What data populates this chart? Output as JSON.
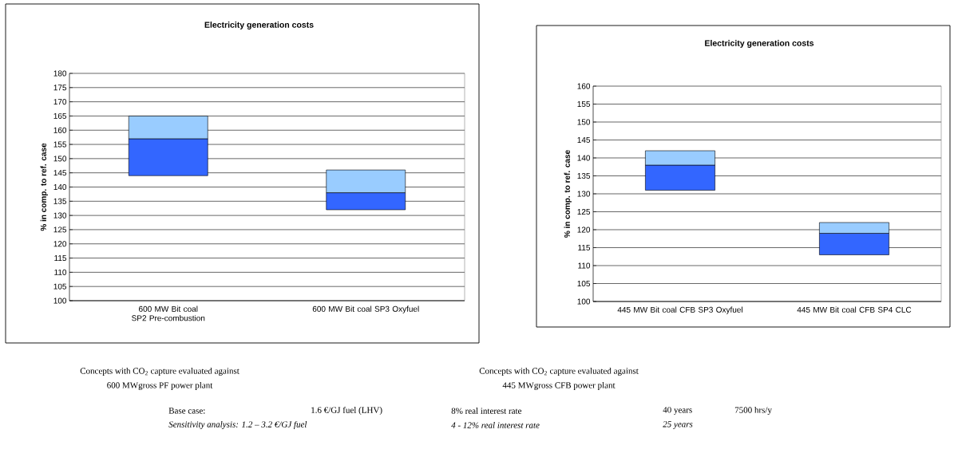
{
  "chart_data": [
    {
      "type": "bar",
      "title": "Electricity generation costs",
      "ylabel": "% in comp. to ref. case",
      "categories": [
        "600 MW Bit coal SP2 Pre-combustion",
        "600 MW Bit coal SP3 Oxyfuel"
      ],
      "series": [
        {
          "color": "#3366ff",
          "base": [
            144,
            132
          ],
          "values": [
            13,
            6
          ]
        },
        {
          "color": "#99ccff",
          "base": [
            157,
            138
          ],
          "values": [
            8,
            8
          ]
        }
      ],
      "ylim": [
        100,
        180
      ],
      "yticks": [
        100,
        105,
        110,
        115,
        120,
        125,
        130,
        135,
        140,
        145,
        150,
        155,
        160,
        165,
        170,
        175,
        180
      ],
      "grid": "y",
      "annotations": [
        "Concepts with CO$_{2}$ capture evaluated against",
        "600 MWgross PF power plant"
      ]
    },
    {
      "type": "bar",
      "title": "Electricity generation costs",
      "ylabel": "% in comp. to ref. case",
      "categories": [
        "445 MW Bit coal CFB SP3 Oxyfuel",
        "445 MW Bit coal CFB SP4 CLC"
      ],
      "series": [
        {
          "color": "#3366ff",
          "base": [
            131,
            113
          ],
          "values": [
            7,
            6
          ]
        },
        {
          "color": "#99ccff",
          "base": [
            138,
            119
          ],
          "values": [
            4,
            3
          ]
        }
      ],
      "ylim": [
        100,
        160
      ],
      "yticks": [
        100,
        105,
        110,
        115,
        120,
        125,
        130,
        135,
        140,
        145,
        150,
        155,
        160
      ],
      "grid": "y",
      "annotations": [
        "Concepts with CO$_{2}$ capture evaluated against",
        "445 MWgross CFB power plant"
      ]
    },
    {
      "type": "other",
      "annotations": [
        "Base case:",
        "1.6 €/GJ fuel (LHV)",
        "8% real interest rate",
        "40 years",
        "7500 hrs/y",
        "Sensitivity analysis: 1.2 – 3.2 €/GJ fuel",
        "4 - 12% real interest rate",
        "25 years"
      ]
    }
  ]
}
